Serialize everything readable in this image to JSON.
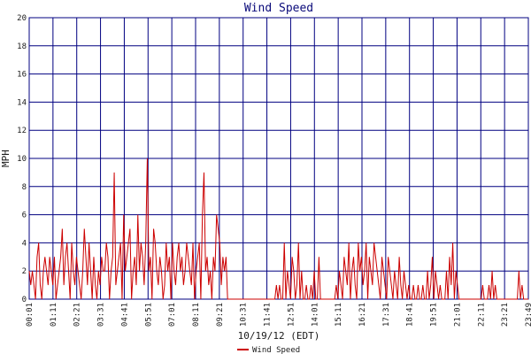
{
  "chart_data": {
    "type": "line",
    "title": "Wind Speed",
    "xlabel": "10/19/12 (EDT)",
    "ylabel": "MPH",
    "ylim": [
      0,
      20
    ],
    "yticks": [
      0,
      2,
      4,
      6,
      8,
      10,
      12,
      14,
      16,
      18,
      20
    ],
    "xticks": [
      "00:01",
      "01:11",
      "02:21",
      "03:31",
      "04:41",
      "05:51",
      "07:01",
      "08:11",
      "09:21",
      "10:31",
      "11:41",
      "12:51",
      "14:01",
      "15:11",
      "16:21",
      "17:31",
      "18:41",
      "19:51",
      "21:01",
      "22:11",
      "23:21",
      "23:49"
    ],
    "grid": true,
    "legend_position": "bottom",
    "line_color": "#cc0000",
    "grid_color": "#000080",
    "series": [
      {
        "name": "Wind Speed",
        "interval_minutes": 2,
        "values": [
          2,
          1,
          2,
          1,
          0,
          3,
          4,
          1,
          0,
          2,
          3,
          2,
          1,
          3,
          2,
          1,
          3,
          0,
          1,
          2,
          3,
          5,
          1,
          3,
          4,
          2,
          0,
          4,
          2,
          1,
          3,
          2,
          1,
          0,
          2,
          5,
          3,
          1,
          4,
          2,
          0,
          3,
          1,
          0,
          2,
          1,
          3,
          2,
          2,
          4,
          3,
          0,
          2,
          3,
          9,
          1,
          2,
          3,
          4,
          0,
          6,
          2,
          3,
          4,
          5,
          0,
          2,
          3,
          1,
          6,
          2,
          4,
          3,
          1,
          4,
          10,
          2,
          3,
          0,
          5,
          4,
          2,
          1,
          3,
          2,
          0,
          1,
          4,
          2,
          3,
          0,
          4,
          2,
          1,
          3,
          4,
          2,
          3,
          1,
          2,
          4,
          3,
          2,
          1,
          4,
          0,
          2,
          3,
          4,
          0,
          6,
          9,
          2,
          3,
          1,
          2,
          0,
          3,
          2,
          6,
          5,
          4,
          1,
          3,
          2,
          3,
          0,
          0,
          0,
          0,
          0,
          0,
          0,
          0,
          0,
          0,
          0,
          0,
          0,
          0,
          0,
          0,
          0,
          0,
          0,
          0,
          0,
          0,
          0,
          0,
          0,
          0,
          0,
          0,
          0,
          0,
          0,
          1,
          0,
          1,
          0,
          0,
          4,
          0,
          2,
          1,
          0,
          3,
          2,
          0,
          1,
          4,
          0,
          2,
          0,
          0,
          1,
          0,
          0,
          1,
          0,
          2,
          0,
          0,
          3,
          0,
          0,
          0,
          0,
          0,
          0,
          0,
          0,
          0,
          0,
          1,
          0,
          2,
          1,
          0,
          3,
          2,
          1,
          4,
          0,
          2,
          3,
          1,
          0,
          4,
          2,
          3,
          1,
          2,
          4,
          0,
          3,
          2,
          1,
          4,
          3,
          2,
          1,
          0,
          3,
          2,
          1,
          0,
          3,
          2,
          1,
          0,
          2,
          1,
          0,
          3,
          1,
          0,
          2,
          1,
          0,
          1,
          0,
          0,
          1,
          0,
          0,
          1,
          0,
          0,
          1,
          0,
          0,
          2,
          0,
          1,
          3,
          0,
          2,
          1,
          0,
          1,
          0,
          0,
          0,
          2,
          0,
          3,
          1,
          4,
          0,
          2,
          1,
          0,
          0,
          0,
          0,
          0,
          0,
          0,
          0,
          0,
          0,
          0,
          0,
          0,
          0,
          0,
          1,
          0,
          0,
          0,
          1,
          0,
          2,
          0,
          1,
          0,
          0,
          0,
          0,
          0,
          0,
          0,
          0,
          0,
          0,
          0,
          0,
          0,
          0,
          2,
          0,
          1,
          0,
          0,
          0,
          0
        ]
      }
    ]
  }
}
